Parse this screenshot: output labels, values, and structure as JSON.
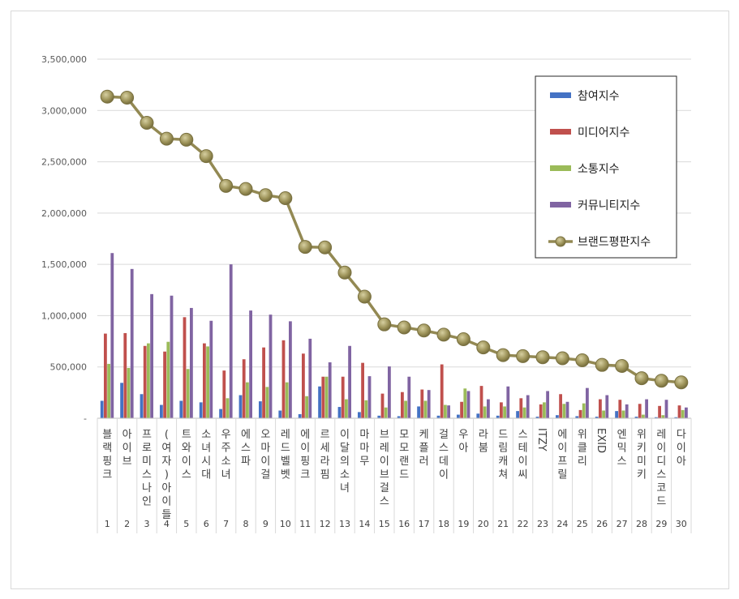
{
  "chart_data": {
    "type": "bar",
    "categories": [
      "블랙핑크",
      "아이브",
      "프로미스나인",
      "(여자)아이들",
      "트와이스",
      "소녀시대",
      "우주소녀",
      "에스파",
      "오마이걸",
      "레드벨벳",
      "에이핑크",
      "르세라핌",
      "이달의소녀",
      "마마무",
      "브레이브걸스",
      "모모랜드",
      "케플러",
      "걸스데이",
      "우아",
      "라붐",
      "드림캐쳐",
      "스테이씨",
      "ITZY",
      "에이프릴",
      "위클리",
      "EXID",
      "엔믹스",
      "위키미키",
      "레이디스코드",
      "다이아"
    ],
    "ranks": [
      "1",
      "2",
      "3",
      "4",
      "5",
      "6",
      "7",
      "8",
      "9",
      "10",
      "11",
      "12",
      "13",
      "14",
      "15",
      "16",
      "17",
      "18",
      "19",
      "20",
      "21",
      "22",
      "23",
      "24",
      "25",
      "26",
      "27",
      "28",
      "29",
      "30"
    ],
    "ylim": [
      0,
      3500000
    ],
    "yticks": [
      "-",
      "500,000",
      "1,000,000",
      "1,500,000",
      "2,000,000",
      "2,500,000",
      "3,000,000",
      "3,500,000"
    ],
    "legend_position": "top-right",
    "series": [
      {
        "name": "참여지수",
        "type": "bar",
        "color": "#4472c4",
        "values": [
          170000,
          345000,
          235000,
          130000,
          170000,
          155000,
          90000,
          225000,
          165000,
          75000,
          40000,
          310000,
          110000,
          60000,
          25000,
          20000,
          115000,
          25000,
          35000,
          45000,
          25000,
          70000,
          15000,
          30000,
          20000,
          15000,
          70000,
          15000,
          10000,
          10000
        ]
      },
      {
        "name": "미디어지수",
        "type": "bar",
        "color": "#c0504d",
        "values": [
          825000,
          830000,
          705000,
          650000,
          985000,
          730000,
          465000,
          575000,
          690000,
          760000,
          630000,
          405000,
          405000,
          540000,
          240000,
          255000,
          280000,
          525000,
          160000,
          315000,
          155000,
          195000,
          135000,
          235000,
          80000,
          185000,
          180000,
          140000,
          120000,
          125000
        ]
      },
      {
        "name": "소통지수",
        "type": "bar",
        "color": "#9bbb59",
        "values": [
          530000,
          490000,
          730000,
          745000,
          480000,
          700000,
          195000,
          350000,
          305000,
          350000,
          215000,
          405000,
          185000,
          175000,
          105000,
          170000,
          170000,
          130000,
          290000,
          115000,
          115000,
          105000,
          155000,
          140000,
          145000,
          75000,
          75000,
          35000,
          30000,
          80000
        ]
      },
      {
        "name": "커뮤니티지수",
        "type": "bar",
        "color": "#8064a2",
        "values": [
          1610000,
          1455000,
          1210000,
          1195000,
          1075000,
          950000,
          1500000,
          1050000,
          1010000,
          945000,
          775000,
          545000,
          705000,
          410000,
          505000,
          405000,
          275000,
          125000,
          265000,
          185000,
          310000,
          225000,
          265000,
          160000,
          295000,
          225000,
          135000,
          185000,
          180000,
          105000
        ]
      },
      {
        "name": "브랜드평판지수",
        "type": "line",
        "color": "#938953",
        "values": [
          3135000,
          3125000,
          2880000,
          2725000,
          2715000,
          2555000,
          2265000,
          2235000,
          2175000,
          2145000,
          1670000,
          1665000,
          1420000,
          1185000,
          915000,
          885000,
          855000,
          815000,
          770000,
          690000,
          615000,
          605000,
          595000,
          585000,
          565000,
          520000,
          510000,
          390000,
          365000,
          350000
        ]
      }
    ]
  }
}
